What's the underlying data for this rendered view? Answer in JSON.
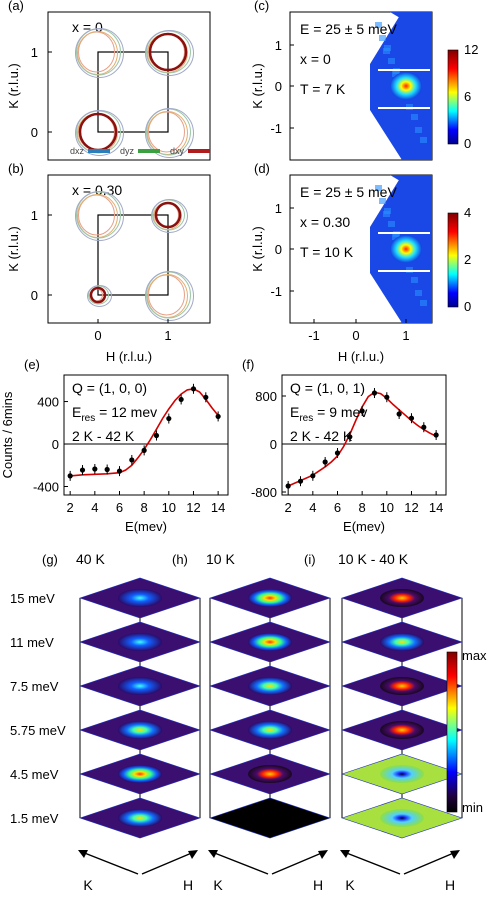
{
  "panels": {
    "a": {
      "label": "(a)",
      "note": "x = 0",
      "ylabel": "K (r.l.u.)",
      "yticks": [
        "1",
        "0"
      ],
      "legend": [
        {
          "name": "d_xz",
          "color": "#2a7fb8"
        },
        {
          "name": "d_yz",
          "color": "#3aa040"
        },
        {
          "name": "d_xy",
          "color": "#b01c1c"
        }
      ]
    },
    "b": {
      "label": "(b)",
      "note": "x = 0.30",
      "ylabel": "K (r.l.u.)",
      "yticks": [
        "1",
        "0"
      ],
      "xticks": [
        "0",
        "1"
      ],
      "xlabel": "H (r.l.u.)"
    },
    "c": {
      "label": "(c)",
      "lines": [
        "E = 25 ± 5 meV",
        "x = 0",
        "T = 7 K"
      ],
      "ylabel": "K (r.l.u.)",
      "yticks": [
        "1",
        "0",
        "-1"
      ],
      "cbar_ticks": [
        "12",
        "6",
        "0"
      ]
    },
    "d": {
      "label": "(d)",
      "lines": [
        "E = 25 ± 5 meV",
        "x = 0.30",
        "T = 10 K"
      ],
      "ylabel": "K (r.l.u.)",
      "yticks": [
        "1",
        "0",
        "-1"
      ],
      "xticks": [
        "-1",
        "0",
        "1"
      ],
      "xlabel": "H (r.l.u.)",
      "cbar_ticks": [
        "4",
        "2",
        "0"
      ]
    },
    "g": {
      "label": "(g)",
      "title": "40 K"
    },
    "h": {
      "label": "(h)",
      "title": "10 K"
    },
    "i": {
      "label": "(i)",
      "title": "10 K - 40 K"
    },
    "energies": [
      "15 meV",
      "11 meV",
      "7.5 meV",
      "5.75 meV",
      "4.5 meV",
      "1.5 meV"
    ],
    "axes_K": "K",
    "axes_H": "H",
    "colorbar": {
      "max": "max",
      "min": "min"
    }
  },
  "chart_data": [
    {
      "panel": "e",
      "type": "scatter",
      "label": "(e)",
      "annotations": [
        "Q = (1, 0, 0)",
        "E_res = 12 mev",
        "2 K - 42 K"
      ],
      "xlabel": "E(mev)",
      "ylabel": "Counts / 6mins",
      "xlim": [
        1.5,
        14.8
      ],
      "ylim": [
        -480,
        650
      ],
      "xticks": [
        2,
        4,
        6,
        8,
        10,
        12,
        14
      ],
      "yticks": [
        400,
        0,
        -400
      ],
      "x": [
        2,
        3,
        4,
        5,
        6,
        7,
        8,
        9,
        10,
        11,
        12,
        13,
        14
      ],
      "y": [
        -300,
        -245,
        -235,
        -240,
        -255,
        -150,
        -60,
        80,
        240,
        420,
        520,
        440,
        260
      ],
      "fit_x": [
        2,
        3,
        4,
        5,
        6,
        6.5,
        7,
        7.5,
        8,
        8.5,
        9,
        9.5,
        10,
        10.5,
        11,
        11.5,
        12,
        12.5,
        13,
        13.5,
        14
      ],
      "fit_y": [
        -300,
        -290,
        -285,
        -280,
        -270,
        -245,
        -200,
        -130,
        -50,
        40,
        140,
        240,
        330,
        410,
        470,
        510,
        520,
        490,
        420,
        340,
        270
      ]
    },
    {
      "panel": "f",
      "type": "scatter",
      "label": "(f)",
      "annotations": [
        "Q = (1, 0, 1)",
        "E_res = 9 mev",
        "2 K - 42 K"
      ],
      "xlabel": "E(mev)",
      "ylabel": "",
      "xlim": [
        1.5,
        14.8
      ],
      "ylim": [
        -850,
        1150
      ],
      "xticks": [
        2,
        4,
        6,
        8,
        10,
        12,
        14
      ],
      "yticks": [
        800,
        0,
        -800
      ],
      "x": [
        2,
        3,
        4,
        5,
        6,
        7,
        8,
        9,
        10,
        11,
        12,
        13,
        14
      ],
      "y": [
        -700,
        -620,
        -530,
        -300,
        -150,
        120,
        550,
        850,
        780,
        500,
        430,
        280,
        150
      ],
      "fit_x": [
        2,
        3,
        4,
        5,
        5.5,
        6,
        6.5,
        7,
        7.5,
        8,
        8.5,
        9,
        9.5,
        10,
        10.5,
        11,
        11.5,
        12,
        12.5,
        13,
        13.5,
        14
      ],
      "fit_y": [
        -700,
        -610,
        -520,
        -380,
        -300,
        -200,
        -40,
        160,
        400,
        620,
        790,
        860,
        840,
        760,
        660,
        570,
        480,
        390,
        310,
        240,
        180,
        130
      ]
    }
  ]
}
